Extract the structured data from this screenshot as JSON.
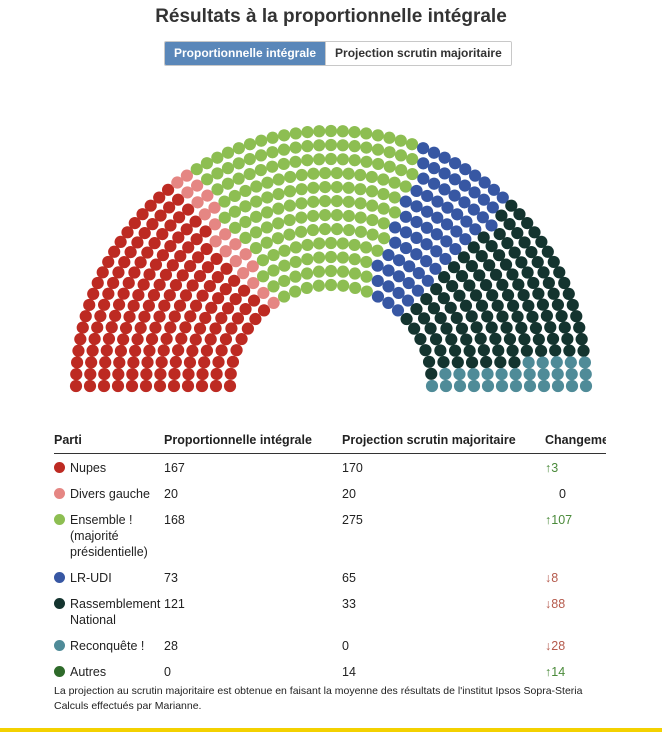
{
  "title": "Résultats à la proportionnelle intégrale",
  "tabs": [
    {
      "label": "Proportionnelle intégrale",
      "active": true
    },
    {
      "label": "Projection scrutin majoritaire",
      "active": false
    }
  ],
  "chart_data": {
    "type": "parliament",
    "total_seats": 577,
    "series": [
      {
        "name": "Nupes",
        "value": 167,
        "color": "#bd2a22"
      },
      {
        "name": "Divers gauche",
        "value": 20,
        "color": "#e58683"
      },
      {
        "name": "Ensemble ! (majorité présidentielle)",
        "value": 168,
        "color": "#8dbe52"
      },
      {
        "name": "LR-UDI",
        "value": 73,
        "color": "#3757a3"
      },
      {
        "name": "Rassemblement National",
        "value": 121,
        "color": "#14342f"
      },
      {
        "name": "Reconquête !",
        "value": 28,
        "color": "#4f8b98"
      },
      {
        "name": "Autres",
        "value": 0,
        "color": "#2e6a2a"
      }
    ]
  },
  "table": {
    "headers": [
      "Parti",
      "Proportionnelle intégrale",
      "Projection scrutin majoritaire",
      "Changement"
    ],
    "rows": [
      {
        "party": "Nupes",
        "color": "#bd2a22",
        "proportional": "167",
        "majority": "170",
        "arrow": "↑",
        "change": "3",
        "direction": "up"
      },
      {
        "party": "Divers gauche",
        "color": "#e58683",
        "proportional": "20",
        "majority": "20",
        "arrow": "",
        "change": "0",
        "direction": "zero"
      },
      {
        "party": "Ensemble ! (majorité présidentielle)",
        "color": "#8dbe52",
        "proportional": "168",
        "majority": "275",
        "arrow": "↑",
        "change": "107",
        "direction": "up"
      },
      {
        "party": "LR-UDI",
        "color": "#3757a3",
        "proportional": "73",
        "majority": "65",
        "arrow": "↓",
        "change": "8",
        "direction": "down"
      },
      {
        "party": "Rassemblement National",
        "color": "#14342f",
        "proportional": "121",
        "majority": "33",
        "arrow": "↓",
        "change": "88",
        "direction": "down"
      },
      {
        "party": "Reconquête !",
        "color": "#4f8b98",
        "proportional": "28",
        "majority": "0",
        "arrow": "↓",
        "change": "28",
        "direction": "down"
      },
      {
        "party": "Autres",
        "color": "#2e6a2a",
        "proportional": "0",
        "majority": "14",
        "arrow": "↑",
        "change": "14",
        "direction": "up"
      }
    ]
  },
  "notes": [
    "La projection au scrutin majoritaire est obtenue en faisant la moyenne des résultats de l'institut Ipsos Sopra-Steria",
    "Calculs effectués par Marianne."
  ],
  "colors": {
    "accent_tab": "#5a87b9",
    "bottom_bar": "#f3d100"
  }
}
